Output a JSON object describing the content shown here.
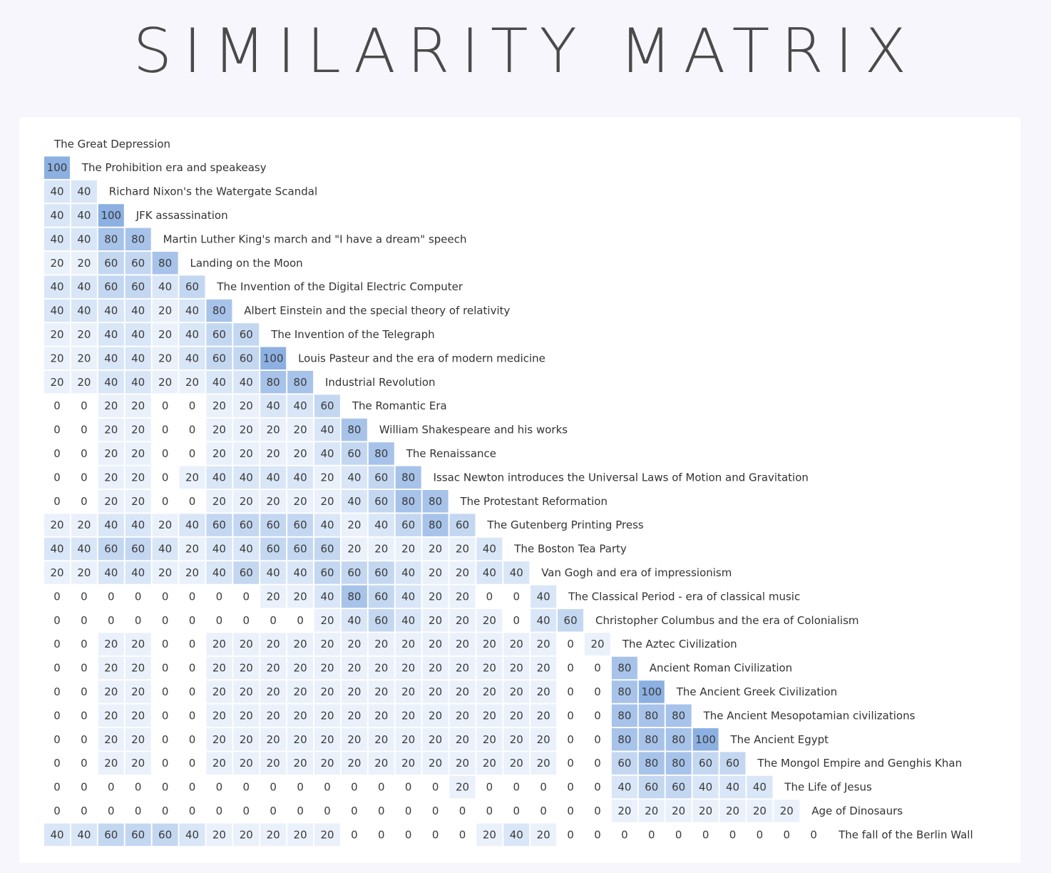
{
  "title": "SIMILARITY MATRIX",
  "colors": {
    "background": "#f8f6fd",
    "panel": "#ffffff",
    "scale": {
      "0": "#ffffff",
      "20": "#eaf1fb",
      "40": "#d9e6f7",
      "60": "#c4d7f1",
      "80": "#a7c3ea",
      "100": "#8cb0e2"
    }
  },
  "chart_data": {
    "type": "heatmap",
    "title": "SIMILARITY MATRIX",
    "layout": "lower-triangular",
    "labels": [
      "The Great Depression",
      "The Prohibition era and speakeasy",
      "Richard Nixon's the Watergate Scandal",
      "JFK assassination",
      "Martin Luther King's march and \"I have a dream\" speech",
      "Landing on the Moon",
      "The Invention of the Digital Electric Computer",
      "Albert Einstein and the special theory of relativity",
      "The Invention of the Telegraph",
      "Louis Pasteur and the era of modern medicine",
      "Industrial Revolution",
      "The Romantic Era",
      "William Shakespeare and his works",
      "The Renaissance",
      "Issac Newton introduces the Universal Laws of Motion and Gravitation",
      "The Protestant Reformation",
      "The Gutenberg Printing Press",
      "The Boston Tea Party",
      "Van Gogh and era of impressionism",
      "The Classical Period - era of classical music",
      "Christopher Columbus and the era of Colonialism",
      "The Aztec Civilization",
      "Ancient Roman Civilization",
      "The Ancient Greek Civilization",
      "The Ancient Mesopotamian civilizations",
      "The Ancient Egypt",
      "The Mongol Empire and Genghis Khan",
      "The Life of Jesus",
      "Age of Dinosaurs",
      "The fall of the Berlin Wall"
    ],
    "values": [
      [],
      [
        100
      ],
      [
        40,
        40
      ],
      [
        40,
        40,
        100
      ],
      [
        40,
        40,
        80,
        80
      ],
      [
        20,
        20,
        60,
        60,
        80
      ],
      [
        40,
        40,
        60,
        60,
        40,
        60
      ],
      [
        40,
        40,
        40,
        40,
        20,
        40,
        80
      ],
      [
        20,
        20,
        40,
        40,
        20,
        40,
        60,
        60
      ],
      [
        20,
        20,
        40,
        40,
        20,
        40,
        60,
        60,
        100
      ],
      [
        20,
        20,
        40,
        40,
        20,
        20,
        40,
        40,
        80,
        80
      ],
      [
        0,
        0,
        20,
        20,
        0,
        0,
        20,
        20,
        40,
        40,
        60
      ],
      [
        0,
        0,
        20,
        20,
        0,
        0,
        20,
        20,
        20,
        20,
        40,
        80
      ],
      [
        0,
        0,
        20,
        20,
        0,
        0,
        20,
        20,
        20,
        20,
        40,
        60,
        80
      ],
      [
        0,
        0,
        20,
        20,
        0,
        20,
        40,
        40,
        40,
        40,
        20,
        40,
        60,
        80
      ],
      [
        0,
        0,
        20,
        20,
        0,
        0,
        20,
        20,
        20,
        20,
        20,
        40,
        60,
        80,
        80
      ],
      [
        20,
        20,
        40,
        40,
        20,
        40,
        60,
        60,
        60,
        60,
        40,
        20,
        40,
        60,
        80,
        60
      ],
      [
        40,
        40,
        60,
        60,
        40,
        20,
        40,
        40,
        60,
        60,
        60,
        20,
        20,
        20,
        20,
        20,
        40
      ],
      [
        20,
        20,
        40,
        40,
        20,
        20,
        40,
        60,
        40,
        40,
        60,
        60,
        60,
        40,
        20,
        20,
        40,
        40
      ],
      [
        0,
        0,
        0,
        0,
        0,
        0,
        0,
        0,
        20,
        20,
        40,
        80,
        60,
        40,
        20,
        20,
        0,
        0,
        40
      ],
      [
        0,
        0,
        0,
        0,
        0,
        0,
        0,
        0,
        0,
        0,
        20,
        40,
        60,
        40,
        20,
        20,
        20,
        0,
        40,
        60
      ],
      [
        0,
        0,
        20,
        20,
        0,
        0,
        20,
        20,
        20,
        20,
        20,
        20,
        20,
        20,
        20,
        20,
        20,
        20,
        20,
        0,
        20
      ],
      [
        0,
        0,
        20,
        20,
        0,
        0,
        20,
        20,
        20,
        20,
        20,
        20,
        20,
        20,
        20,
        20,
        20,
        20,
        20,
        0,
        0,
        80
      ],
      [
        0,
        0,
        20,
        20,
        0,
        0,
        20,
        20,
        20,
        20,
        20,
        20,
        20,
        20,
        20,
        20,
        20,
        20,
        20,
        0,
        0,
        80,
        100
      ],
      [
        0,
        0,
        20,
        20,
        0,
        0,
        20,
        20,
        20,
        20,
        20,
        20,
        20,
        20,
        20,
        20,
        20,
        20,
        20,
        0,
        0,
        80,
        80,
        80
      ],
      [
        0,
        0,
        20,
        20,
        0,
        0,
        20,
        20,
        20,
        20,
        20,
        20,
        20,
        20,
        20,
        20,
        20,
        20,
        20,
        0,
        0,
        80,
        80,
        80,
        100
      ],
      [
        0,
        0,
        20,
        20,
        0,
        0,
        20,
        20,
        20,
        20,
        20,
        20,
        20,
        20,
        20,
        20,
        20,
        20,
        20,
        0,
        0,
        60,
        80,
        80,
        60,
        60
      ],
      [
        0,
        0,
        0,
        0,
        0,
        0,
        0,
        0,
        0,
        0,
        0,
        0,
        0,
        0,
        0,
        20,
        0,
        0,
        0,
        0,
        0,
        40,
        60,
        60,
        40,
        40,
        40
      ],
      [
        0,
        0,
        0,
        0,
        0,
        0,
        0,
        0,
        0,
        0,
        0,
        0,
        0,
        0,
        0,
        0,
        0,
        0,
        0,
        0,
        0,
        20,
        20,
        20,
        20,
        20,
        20,
        20
      ],
      [
        40,
        40,
        60,
        60,
        60,
        40,
        20,
        20,
        20,
        20,
        20,
        0,
        0,
        0,
        0,
        0,
        20,
        40,
        20,
        0,
        0,
        0,
        0,
        0,
        0,
        0,
        0,
        0,
        0
      ]
    ]
  }
}
